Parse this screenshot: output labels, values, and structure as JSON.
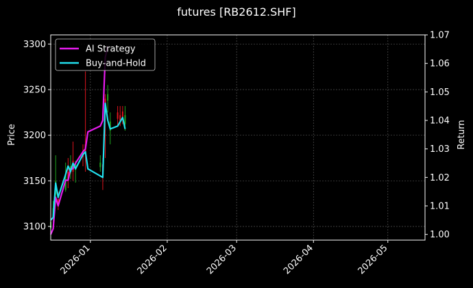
{
  "chart_data": {
    "type": "line",
    "title": "futures [RB2612.SHF]",
    "xlabel": "",
    "ylabel_left": "Price",
    "ylabel_right": "Return",
    "x_ticks": [
      "2026-01",
      "2026-02",
      "2026-03",
      "2026-04",
      "2026-05"
    ],
    "y_left_ticks": [
      3100,
      3150,
      3200,
      3250,
      3300
    ],
    "y_right_ticks": [
      "1.00",
      "1.01",
      "1.02",
      "1.03",
      "1.04",
      "1.05",
      "1.06",
      "1.07"
    ],
    "xlim": [
      "2025-12-16",
      "2026-05-16"
    ],
    "ylim_left": [
      3085,
      3310
    ],
    "ylim_right": [
      0.998,
      1.07
    ],
    "grid": true,
    "legend_position": "top-left",
    "candles": [
      {
        "date": "2025-12-16",
        "open": 3098,
        "close": 3105,
        "low": 3096,
        "high": 3112
      },
      {
        "date": "2025-12-17",
        "open": 3108,
        "close": 3120,
        "low": 3104,
        "high": 3128
      },
      {
        "date": "2025-12-18",
        "open": 3135,
        "close": 3150,
        "low": 3130,
        "high": 3178
      },
      {
        "date": "2025-12-19",
        "open": 3130,
        "close": 3124,
        "low": 3118,
        "high": 3138
      },
      {
        "date": "2025-12-22",
        "open": 3140,
        "close": 3158,
        "low": 3138,
        "high": 3170
      },
      {
        "date": "2025-12-23",
        "open": 3160,
        "close": 3150,
        "low": 3142,
        "high": 3175
      },
      {
        "date": "2025-12-24",
        "open": 3158,
        "close": 3166,
        "low": 3152,
        "high": 3178
      },
      {
        "date": "2025-12-25",
        "open": 3172,
        "close": 3160,
        "low": 3150,
        "high": 3193
      },
      {
        "date": "2025-12-26",
        "open": 3162,
        "close": 3168,
        "low": 3148,
        "high": 3172
      },
      {
        "date": "2025-12-29",
        "open": 3182,
        "close": 3176,
        "low": 3166,
        "high": 3190
      },
      {
        "date": "2025-12-30",
        "open": 3190,
        "close": 3182,
        "low": 3160,
        "high": 3270
      },
      {
        "date": "2026-01-05",
        "open": 3165,
        "close": 3170,
        "low": 3160,
        "high": 3178
      },
      {
        "date": "2026-01-06",
        "open": 3168,
        "close": 3160,
        "low": 3140,
        "high": 3175
      },
      {
        "date": "2026-01-07",
        "open": 3240,
        "close": 3228,
        "low": 3175,
        "high": 3245
      },
      {
        "date": "2026-01-08",
        "open": 3238,
        "close": 3245,
        "low": 3225,
        "high": 3255
      },
      {
        "date": "2026-01-09",
        "open": 3205,
        "close": 3215,
        "low": 3190,
        "high": 3225
      },
      {
        "date": "2026-01-12",
        "open": 3225,
        "close": 3218,
        "low": 3210,
        "high": 3232
      },
      {
        "date": "2026-01-13",
        "open": 3222,
        "close": 3216,
        "low": 3210,
        "high": 3232
      },
      {
        "date": "2026-01-14",
        "open": 3226,
        "close": 3220,
        "low": 3212,
        "high": 3232
      },
      {
        "date": "2026-01-15",
        "open": 3212,
        "close": 3222,
        "low": 3205,
        "high": 3232
      }
    ],
    "series": [
      {
        "name": "AI Strategy",
        "color": "#e81cf0",
        "axis": "right",
        "points": [
          [
            "2025-12-16",
            1.0
          ],
          [
            "2025-12-17",
            1.002
          ],
          [
            "2025-12-18",
            1.013
          ],
          [
            "2025-12-19",
            1.01
          ],
          [
            "2025-12-22",
            1.019
          ],
          [
            "2025-12-23",
            1.019
          ],
          [
            "2025-12-24",
            1.023
          ],
          [
            "2025-12-25",
            1.023
          ],
          [
            "2025-12-26",
            1.025
          ],
          [
            "2025-12-29",
            1.029
          ],
          [
            "2025-12-30",
            1.03
          ],
          [
            "2025-12-31",
            1.036
          ],
          [
            "2026-01-05",
            1.038
          ],
          [
            "2026-01-06",
            1.04
          ],
          [
            "2026-01-07",
            1.062
          ],
          [
            "2026-01-08",
            1.066
          ]
        ]
      },
      {
        "name": "Buy-and-Hold",
        "color": "#22e0ee",
        "axis": "right",
        "points": [
          [
            "2025-12-16",
            1.005
          ],
          [
            "2025-12-17",
            1.006
          ],
          [
            "2025-12-18",
            1.018
          ],
          [
            "2025-12-19",
            1.013
          ],
          [
            "2025-12-22",
            1.021
          ],
          [
            "2025-12-23",
            1.024
          ],
          [
            "2025-12-24",
            1.022
          ],
          [
            "2025-12-25",
            1.025
          ],
          [
            "2025-12-26",
            1.023
          ],
          [
            "2025-12-29",
            1.028
          ],
          [
            "2025-12-30",
            1.029
          ],
          [
            "2025-12-31",
            1.023
          ],
          [
            "2026-01-06",
            1.02
          ],
          [
            "2026-01-07",
            1.046
          ],
          [
            "2026-01-08",
            1.04
          ],
          [
            "2026-01-09",
            1.037
          ],
          [
            "2026-01-12",
            1.038
          ],
          [
            "2026-01-14",
            1.041
          ],
          [
            "2026-01-15",
            1.037
          ]
        ]
      }
    ]
  }
}
